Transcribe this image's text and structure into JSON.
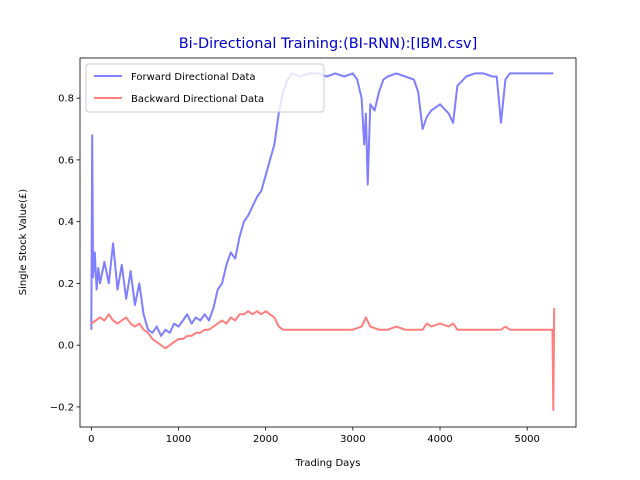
{
  "chart_data": {
    "type": "line",
    "title": "Bi-Directional Training:(BI-RNN):[IBM.csv]",
    "title_color": "#0000cc",
    "xlabel": "Trading Days",
    "ylabel": "Single Stock Value(£)",
    "xlim": [
      -130,
      5560
    ],
    "ylim": [
      -0.265,
      0.93
    ],
    "xticks": [
      0,
      1000,
      2000,
      3000,
      4000,
      5000
    ],
    "xtick_labels": [
      "0",
      "1000",
      "2000",
      "3000",
      "4000",
      "5000"
    ],
    "yticks": [
      -0.2,
      0.0,
      0.2,
      0.4,
      0.6,
      0.8
    ],
    "ytick_labels": [
      "−0.2",
      "0.0",
      "0.2",
      "0.4",
      "0.6",
      "0.8"
    ],
    "grid": false,
    "legend_position": "top-left",
    "series": [
      {
        "name": "Forward Directional Data",
        "color": "#7f7fff",
        "x": [
          0,
          10,
          20,
          40,
          60,
          80,
          100,
          150,
          200,
          250,
          300,
          350,
          400,
          450,
          500,
          550,
          600,
          650,
          700,
          750,
          800,
          850,
          900,
          950,
          1000,
          1050,
          1100,
          1150,
          1200,
          1250,
          1300,
          1350,
          1400,
          1450,
          1500,
          1550,
          1600,
          1650,
          1700,
          1750,
          1800,
          1850,
          1900,
          1950,
          2000,
          2050,
          2100,
          2150,
          2200,
          2250,
          2300,
          2400,
          2500,
          2600,
          2700,
          2800,
          2900,
          3000,
          3050,
          3100,
          3130,
          3150,
          3170,
          3200,
          3250,
          3300,
          3350,
          3400,
          3500,
          3600,
          3700,
          3750,
          3800,
          3850,
          3900,
          4000,
          4100,
          4150,
          4200,
          4300,
          4400,
          4500,
          4600,
          4650,
          4700,
          4750,
          4800,
          4900,
          5000,
          5100,
          5200,
          5300
        ],
        "y": [
          0.05,
          0.68,
          0.22,
          0.3,
          0.18,
          0.25,
          0.2,
          0.27,
          0.2,
          0.33,
          0.18,
          0.26,
          0.15,
          0.24,
          0.13,
          0.2,
          0.1,
          0.05,
          0.04,
          0.06,
          0.03,
          0.05,
          0.04,
          0.07,
          0.06,
          0.08,
          0.1,
          0.07,
          0.09,
          0.08,
          0.1,
          0.08,
          0.12,
          0.18,
          0.2,
          0.26,
          0.3,
          0.28,
          0.35,
          0.4,
          0.42,
          0.45,
          0.48,
          0.5,
          0.55,
          0.6,
          0.65,
          0.75,
          0.82,
          0.86,
          0.88,
          0.87,
          0.88,
          0.88,
          0.87,
          0.88,
          0.87,
          0.88,
          0.86,
          0.8,
          0.65,
          0.75,
          0.52,
          0.78,
          0.76,
          0.82,
          0.86,
          0.87,
          0.88,
          0.87,
          0.86,
          0.82,
          0.7,
          0.74,
          0.76,
          0.78,
          0.75,
          0.72,
          0.84,
          0.87,
          0.88,
          0.88,
          0.87,
          0.87,
          0.72,
          0.86,
          0.88,
          0.88,
          0.88,
          0.88,
          0.88,
          0.88
        ]
      },
      {
        "name": "Backward Directional Data",
        "color": "#ff7f7f",
        "x": [
          0,
          50,
          100,
          150,
          200,
          250,
          300,
          350,
          400,
          450,
          500,
          550,
          600,
          650,
          700,
          750,
          800,
          850,
          900,
          950,
          1000,
          1050,
          1100,
          1150,
          1200,
          1250,
          1300,
          1350,
          1400,
          1450,
          1500,
          1550,
          1600,
          1650,
          1700,
          1750,
          1800,
          1850,
          1900,
          1950,
          2000,
          2050,
          2100,
          2150,
          2200,
          2300,
          2400,
          2500,
          2600,
          2700,
          2800,
          2900,
          3000,
          3100,
          3150,
          3200,
          3300,
          3400,
          3500,
          3600,
          3700,
          3800,
          3850,
          3900,
          4000,
          4100,
          4150,
          4200,
          4300,
          4400,
          4500,
          4600,
          4700,
          4750,
          4800,
          4900,
          5000,
          5100,
          5200,
          5290,
          5300,
          5310
        ],
        "y": [
          0.07,
          0.08,
          0.09,
          0.08,
          0.1,
          0.08,
          0.07,
          0.08,
          0.09,
          0.07,
          0.06,
          0.07,
          0.05,
          0.04,
          0.02,
          0.01,
          0.0,
          -0.01,
          0.0,
          0.01,
          0.02,
          0.02,
          0.03,
          0.03,
          0.04,
          0.04,
          0.05,
          0.05,
          0.06,
          0.07,
          0.08,
          0.07,
          0.09,
          0.08,
          0.1,
          0.1,
          0.11,
          0.1,
          0.11,
          0.1,
          0.11,
          0.1,
          0.09,
          0.06,
          0.05,
          0.05,
          0.05,
          0.05,
          0.05,
          0.05,
          0.05,
          0.05,
          0.05,
          0.06,
          0.09,
          0.06,
          0.05,
          0.05,
          0.06,
          0.05,
          0.05,
          0.05,
          0.07,
          0.06,
          0.07,
          0.06,
          0.07,
          0.05,
          0.05,
          0.05,
          0.05,
          0.05,
          0.05,
          0.06,
          0.05,
          0.05,
          0.05,
          0.05,
          0.05,
          0.05,
          -0.21,
          0.12
        ]
      }
    ]
  }
}
